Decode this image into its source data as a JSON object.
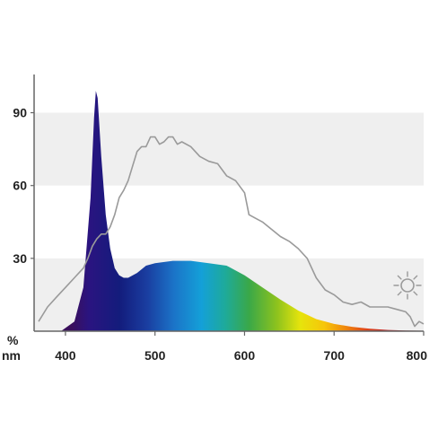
{
  "chart_data": {
    "type": "area",
    "title": "",
    "xlabel": "nm",
    "ylabel": "%",
    "xlim": [
      365,
      800
    ],
    "ylim": [
      0,
      105
    ],
    "x_ticks": [
      400,
      500,
      600,
      700,
      800
    ],
    "y_ticks": [
      30,
      60,
      90
    ],
    "x_tick_labels": [
      "400",
      "500",
      "600",
      "700",
      "800"
    ],
    "y_tick_labels": [
      "30",
      "60",
      "90"
    ],
    "grid": "alternating horizontal bands",
    "legend": "none",
    "series": [
      {
        "kind": "filled-area-spectral-gradient",
        "x": [
          370,
          395,
          410,
          420,
          428,
          432,
          434,
          436,
          440,
          445,
          450,
          455,
          460,
          465,
          470,
          480,
          490,
          500,
          520,
          540,
          560,
          580,
          600,
          620,
          640,
          660,
          680,
          700,
          720,
          740,
          760,
          780,
          800
        ],
        "y": [
          0,
          0,
          4,
          18,
          55,
          88,
          99,
          96,
          72,
          48,
          34,
          26,
          23,
          22,
          22,
          24,
          27,
          28,
          29,
          29,
          28,
          27,
          23,
          18,
          13,
          8.5,
          5,
          3,
          1.8,
          1,
          0.5,
          0.3,
          0.2
        ]
      },
      {
        "kind": "reference-line",
        "x": [
          370,
          380,
          390,
          400,
          410,
          415,
          420,
          425,
          430,
          435,
          440,
          445,
          450,
          455,
          460,
          465,
          470,
          475,
          480,
          485,
          490,
          495,
          500,
          505,
          510,
          515,
          520,
          525,
          530,
          540,
          550,
          560,
          570,
          580,
          590,
          600,
          605,
          610,
          620,
          630,
          640,
          650,
          660,
          670,
          680,
          690,
          700,
          710,
          720,
          730,
          740,
          750,
          760,
          770,
          780,
          785,
          790,
          795,
          800
        ],
        "y": [
          4,
          10,
          14,
          18,
          22,
          24,
          26,
          30,
          35,
          38,
          40,
          40,
          43,
          48,
          55,
          58,
          62,
          68,
          74,
          76,
          76,
          80,
          80,
          77,
          78,
          80,
          80,
          77,
          78,
          76,
          72,
          70,
          69,
          64,
          62,
          57,
          48,
          47,
          45,
          42,
          39,
          37,
          34,
          30,
          22,
          17,
          15,
          12,
          11,
          12,
          10,
          10,
          10,
          9,
          8,
          6,
          2,
          4,
          3
        ]
      }
    ],
    "reference_icon": "sun-icon"
  }
}
